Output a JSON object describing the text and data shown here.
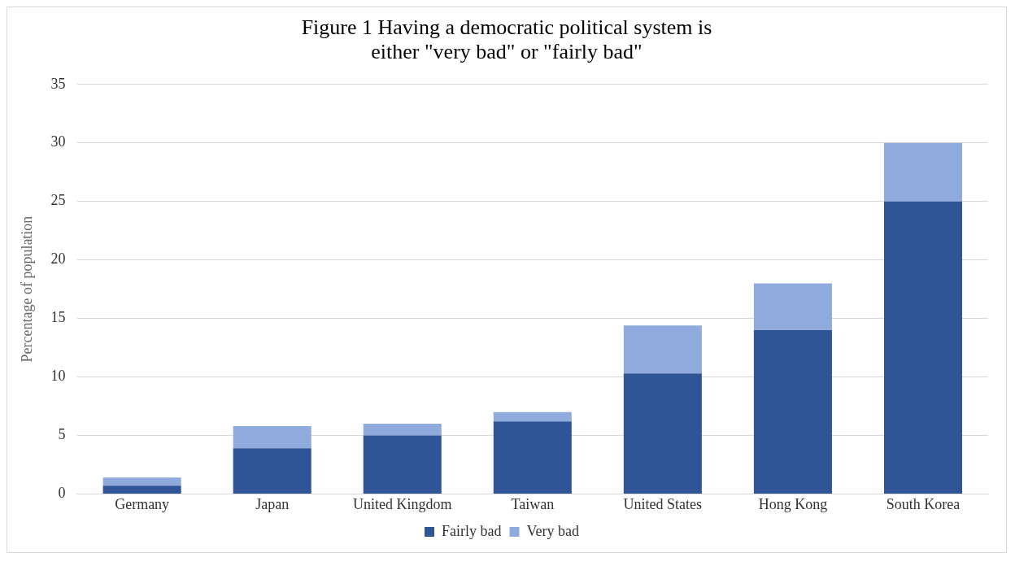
{
  "chart_data": {
    "type": "bar",
    "title": "Figure 1 Having a democratic political system is either \"very bad\" or \"fairly bad\"",
    "ylabel": "Percentage of population",
    "categories": [
      "Germany",
      "Japan",
      "United Kingdom",
      "Taiwan",
      "United States",
      "Hong Kong",
      "South Korea"
    ],
    "series": [
      {
        "name": "Fairly bad",
        "color": "#2f5597",
        "values": [
          0.7,
          3.9,
          5.0,
          6.2,
          10.3,
          14.0,
          25.0
        ]
      },
      {
        "name": "Very bad",
        "color": "#8faadc",
        "values": [
          0.7,
          1.9,
          1.0,
          0.8,
          4.1,
          4.0,
          5.0
        ]
      }
    ],
    "stacked": true,
    "ylim": [
      0,
      35
    ],
    "yticks": [
      0,
      5,
      10,
      15,
      20,
      25,
      30,
      35
    ],
    "grid": "y",
    "legend": "bottom"
  }
}
